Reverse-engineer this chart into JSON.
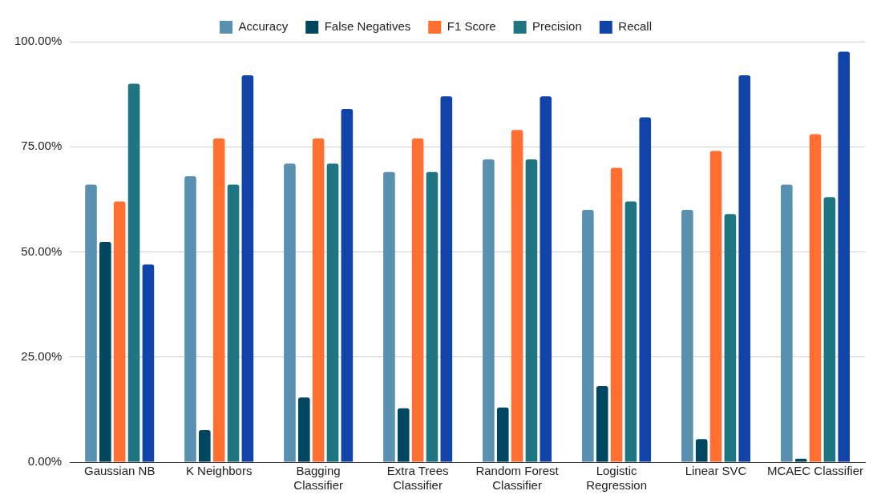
{
  "chart_data": {
    "type": "bar",
    "categories": [
      "Gaussian NB",
      "K Neighbors",
      "Bagging Classifier",
      "Extra Trees Classifier",
      "Random Forest Classifier",
      "Logistic Regression",
      "Linear SVC",
      "MCAEC Classifier"
    ],
    "series": [
      {
        "name": "Accuracy",
        "color": "#5a91b0",
        "values": [
          66,
          68,
          71,
          69,
          72,
          60,
          60,
          66
        ]
      },
      {
        "name": "False Negatives",
        "color": "#00475f",
        "values": [
          52.4,
          7.6,
          15.4,
          12.8,
          13,
          18.1,
          5.5,
          0.8
        ]
      },
      {
        "name": "F1 Score",
        "color": "#ff6f31",
        "values": [
          62,
          77,
          77,
          77,
          79,
          70,
          74,
          78
        ]
      },
      {
        "name": "Precision",
        "color": "#1f7582",
        "values": [
          90,
          66,
          71,
          69,
          72,
          62,
          59,
          63
        ]
      },
      {
        "name": "Recall",
        "color": "#1143a8",
        "values": [
          47,
          92,
          84,
          87,
          87,
          82,
          92,
          97.6
        ]
      }
    ],
    "ylim": [
      0,
      100
    ],
    "yticks": [
      {
        "value": 0,
        "label": "0.00%"
      },
      {
        "value": 25,
        "label": "25.00%"
      },
      {
        "value": 50,
        "label": "50.00%"
      },
      {
        "value": 75,
        "label": "75.00%"
      },
      {
        "value": 100,
        "label": "100.00%"
      }
    ],
    "grid": "y",
    "legend": "top"
  }
}
